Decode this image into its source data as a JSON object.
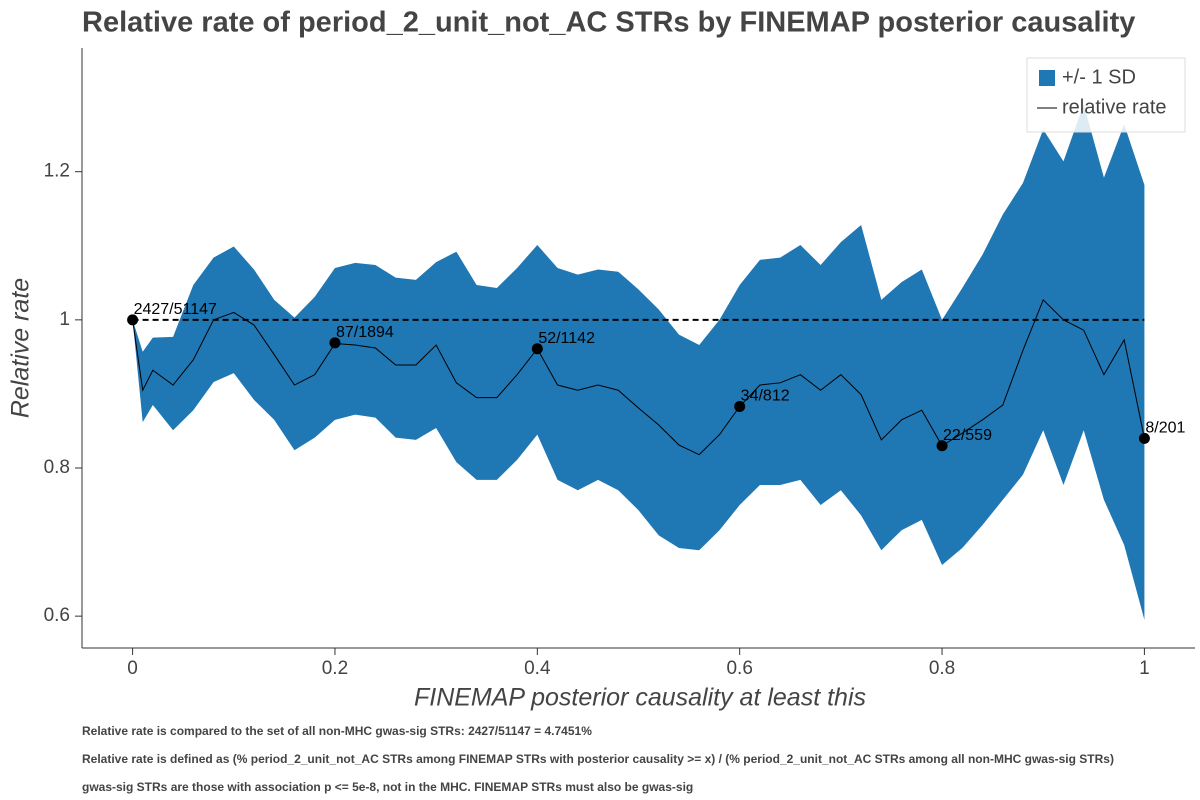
{
  "chart_data": {
    "type": "line",
    "title": "Relative rate of period_2_unit_not_AC STRs by FINEMAP posterior causality",
    "x_label": "FINEMAP posterior causality at least this",
    "y_label": "Relative rate",
    "xlim": [
      -0.05,
      1.05
    ],
    "ylim": [
      0.557,
      1.367
    ],
    "xticks": [
      0,
      0.2,
      0.4,
      0.6,
      0.8,
      1
    ],
    "yticks": [
      0.6,
      0.8,
      1,
      1.2
    ],
    "legend": "top-right",
    "x": [
      0,
      0.01,
      0.02,
      0.04,
      0.06,
      0.08,
      0.1,
      0.12,
      0.14,
      0.16,
      0.18,
      0.2,
      0.22,
      0.24,
      0.26,
      0.28,
      0.3,
      0.32,
      0.34,
      0.36,
      0.38,
      0.4,
      0.42,
      0.44,
      0.46,
      0.48,
      0.5,
      0.52,
      0.54,
      0.56,
      0.58,
      0.6,
      0.62,
      0.64,
      0.66,
      0.68,
      0.7,
      0.72,
      0.74,
      0.76,
      0.78,
      0.8,
      0.82,
      0.84,
      0.86,
      0.88,
      0.9,
      0.92,
      0.94,
      0.96,
      0.98,
      1
    ],
    "series": [
      {
        "name": "+/- 1 SD",
        "type": "band",
        "color": "#1f77b4",
        "upper": [
          1.0,
          0.957,
          0.976,
          0.977,
          1.047,
          1.084,
          1.099,
          1.068,
          1.027,
          1.003,
          1.031,
          1.07,
          1.077,
          1.074,
          1.057,
          1.054,
          1.078,
          1.092,
          1.047,
          1.043,
          1.07,
          1.101,
          1.07,
          1.061,
          1.068,
          1.065,
          1.041,
          1.014,
          0.98,
          0.966,
          1.0,
          1.047,
          1.081,
          1.084,
          1.101,
          1.074,
          1.105,
          1.128,
          1.027,
          1.051,
          1.068,
          1.0,
          1.043,
          1.088,
          1.142,
          1.185,
          1.257,
          1.214,
          1.291,
          1.192,
          1.264,
          1.182
        ],
        "lower": [
          1.0,
          0.862,
          0.885,
          0.851,
          0.878,
          0.916,
          0.928,
          0.892,
          0.865,
          0.824,
          0.841,
          0.865,
          0.872,
          0.868,
          0.841,
          0.838,
          0.854,
          0.808,
          0.784,
          0.784,
          0.811,
          0.845,
          0.784,
          0.77,
          0.784,
          0.77,
          0.743,
          0.709,
          0.692,
          0.689,
          0.716,
          0.75,
          0.777,
          0.777,
          0.784,
          0.75,
          0.77,
          0.736,
          0.689,
          0.716,
          0.73,
          0.669,
          0.692,
          0.723,
          0.757,
          0.791,
          0.851,
          0.777,
          0.851,
          0.757,
          0.696,
          0.595
        ]
      },
      {
        "name": "relative rate",
        "type": "line",
        "color": "#000000",
        "values": [
          1.0,
          0.905,
          0.932,
          0.912,
          0.946,
          1.0,
          1.01,
          0.993,
          0.953,
          0.912,
          0.926,
          0.968,
          0.966,
          0.962,
          0.939,
          0.939,
          0.966,
          0.915,
          0.895,
          0.895,
          0.926,
          0.961,
          0.912,
          0.905,
          0.912,
          0.905,
          0.881,
          0.858,
          0.831,
          0.818,
          0.845,
          0.883,
          0.912,
          0.915,
          0.926,
          0.905,
          0.926,
          0.899,
          0.838,
          0.865,
          0.878,
          0.83,
          0.847,
          0.865,
          0.885,
          0.959,
          1.027,
          1.0,
          0.986,
          0.926,
          0.973,
          0.84
        ]
      }
    ],
    "reference_line": {
      "y": 1,
      "x_range": [
        0,
        1
      ],
      "style": "dashed"
    },
    "annotations": [
      {
        "x": 0,
        "y": 1.0,
        "label": "2427/51147"
      },
      {
        "x": 0.2,
        "y": 0.969,
        "label": "87/1894"
      },
      {
        "x": 0.4,
        "y": 0.961,
        "label": "52/1142"
      },
      {
        "x": 0.6,
        "y": 0.883,
        "label": "34/812"
      },
      {
        "x": 0.8,
        "y": 0.83,
        "label": "22/559"
      },
      {
        "x": 1,
        "y": 0.84,
        "label": "8/201"
      }
    ],
    "notes": [
      "Relative rate is compared to the set of all non-MHC gwas-sig STRs: 2427/51147 = 4.7451%",
      "Relative rate is defined as (% period_2_unit_not_AC STRs among FINEMAP STRs with posterior causality >= x) / (% period_2_unit_not_AC STRs among all non-MHC gwas-sig STRs)",
      "gwas-sig STRs are those with association p <= 5e-8, not in the MHC. FINEMAP STRs must also be gwas-sig"
    ]
  }
}
